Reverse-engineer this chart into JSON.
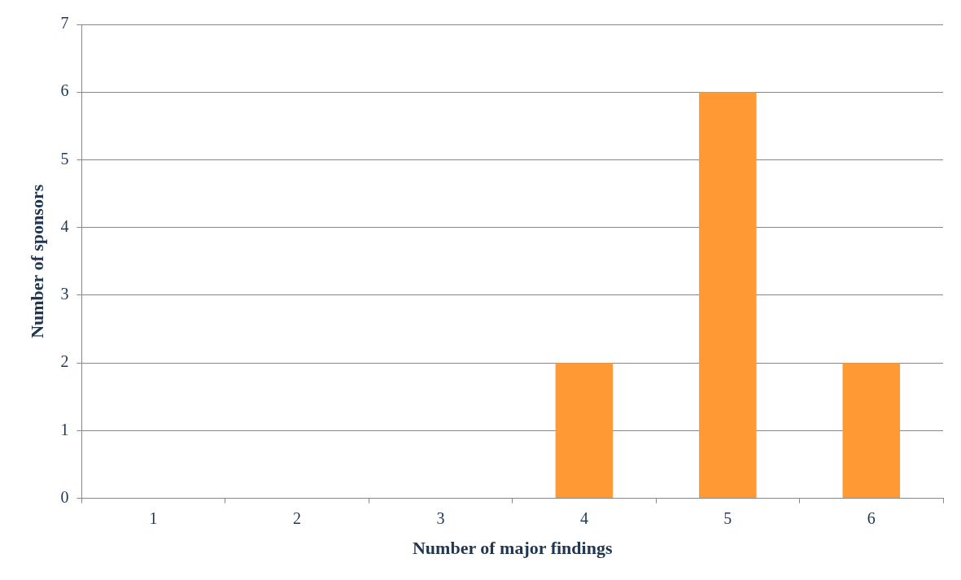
{
  "chart_data": {
    "type": "bar",
    "xlabel": "Number of major findings",
    "ylabel": "Number of sponsors",
    "categories": [
      "1",
      "2",
      "3",
      "4",
      "5",
      "6"
    ],
    "values": [
      0,
      0,
      0,
      2,
      6,
      2
    ],
    "color": "#ff9933",
    "ylim": [
      0,
      7
    ],
    "yticks": [
      0,
      1,
      2,
      3,
      4,
      5,
      6,
      7
    ],
    "grid": "y"
  }
}
